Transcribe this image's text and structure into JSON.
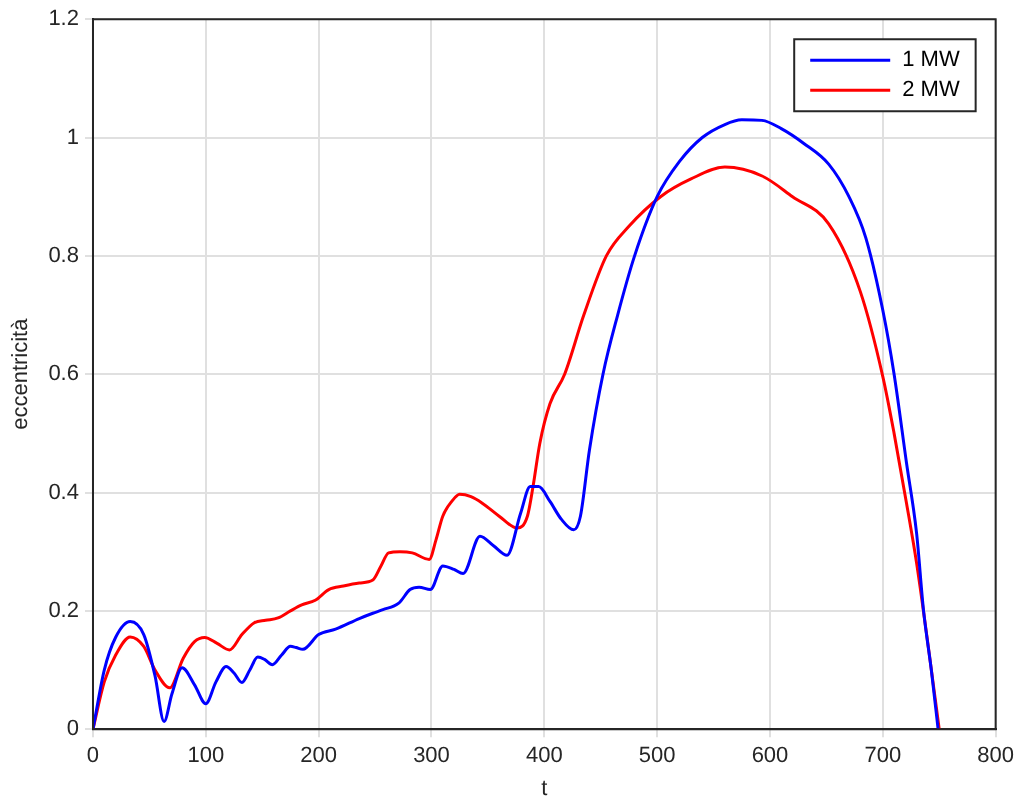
{
  "chart_data": {
    "type": "line",
    "xlabel": "t",
    "ylabel": "eccentricità",
    "xlim": [
      0,
      800
    ],
    "xticks": [
      0,
      100,
      200,
      300,
      400,
      500,
      600,
      700,
      800
    ],
    "ylim": [
      0,
      1.2
    ],
    "yticks": [
      0,
      0.2,
      0.4,
      0.6,
      0.8,
      1,
      1.2
    ],
    "grid": true,
    "legend": "top right",
    "marker": "none",
    "line_style": "solid",
    "series": [
      {
        "name": "1 MW",
        "color": "#0000ff",
        "x": [
          0,
          10,
          20,
          33,
          45,
          55,
          63,
          70,
          79,
          90,
          100,
          109,
          118,
          125,
          132,
          139,
          146,
          152,
          159,
          167,
          175,
          180,
          186,
          200,
          215,
          236,
          248,
          257,
          271,
          281,
          289,
          299,
          310,
          320,
          328,
          343,
          355,
          367,
          379,
          387.5,
          395,
          405,
          415,
          426,
          432,
          440,
          452,
          465,
          480,
          500,
          520,
          540,
          560,
          575,
          593,
          610,
          630,
          652,
          670,
          685,
          700,
          710,
          721,
          730,
          736,
          743,
          749
        ],
        "values": [
          0,
          0.1,
          0.155,
          0.182,
          0.16,
          0.09,
          0.013,
          0.06,
          0.104,
          0.075,
          0.043,
          0.08,
          0.106,
          0.095,
          0.079,
          0.1,
          0.122,
          0.118,
          0.109,
          0.125,
          0.14,
          0.138,
          0.135,
          0.16,
          0.169,
          0.187,
          0.196,
          0.202,
          0.213,
          0.236,
          0.24,
          0.236,
          0.276,
          0.27,
          0.263,
          0.326,
          0.31,
          0.294,
          0.365,
          0.41,
          0.41,
          0.385,
          0.355,
          0.337,
          0.36,
          0.472,
          0.6,
          0.7,
          0.8,
          0.9,
          0.96,
          1.0,
          1.022,
          1.03,
          1.029,
          1.015,
          0.99,
          0.955,
          0.9,
          0.83,
          0.708,
          0.6,
          0.45,
          0.33,
          0.202,
          0.1,
          0
        ]
      },
      {
        "name": "2 MW",
        "color": "#ff0000",
        "x": [
          0,
          10,
          20,
          33,
          45,
          55,
          68,
          80,
          90,
          99,
          110,
          121,
          132,
          143,
          153,
          164,
          175,
          185,
          197,
          209,
          222,
          236,
          248,
          255,
          262,
          272,
          283,
          298,
          304,
          310,
          318,
          325,
          335,
          345,
          360,
          376,
          385,
          390,
          396,
          405,
          418,
          435,
          455,
          475,
          503,
          530,
          560,
          593,
          620,
          652,
          680,
          700,
          710,
          721,
          730,
          739,
          750
        ],
        "values": [
          0,
          0.08,
          0.125,
          0.156,
          0.14,
          0.1,
          0.07,
          0.12,
          0.148,
          0.155,
          0.145,
          0.134,
          0.16,
          0.18,
          0.184,
          0.188,
          0.2,
          0.21,
          0.218,
          0.236,
          0.242,
          0.247,
          0.252,
          0.275,
          0.298,
          0.3,
          0.298,
          0.287,
          0.32,
          0.36,
          0.385,
          0.397,
          0.393,
          0.382,
          0.36,
          0.34,
          0.36,
          0.41,
          0.483,
          0.55,
          0.6,
          0.7,
          0.8,
          0.85,
          0.9,
          0.93,
          0.95,
          0.935,
          0.9,
          0.854,
          0.74,
          0.596,
          0.5,
          0.382,
          0.28,
          0.158,
          0
        ]
      }
    ]
  }
}
